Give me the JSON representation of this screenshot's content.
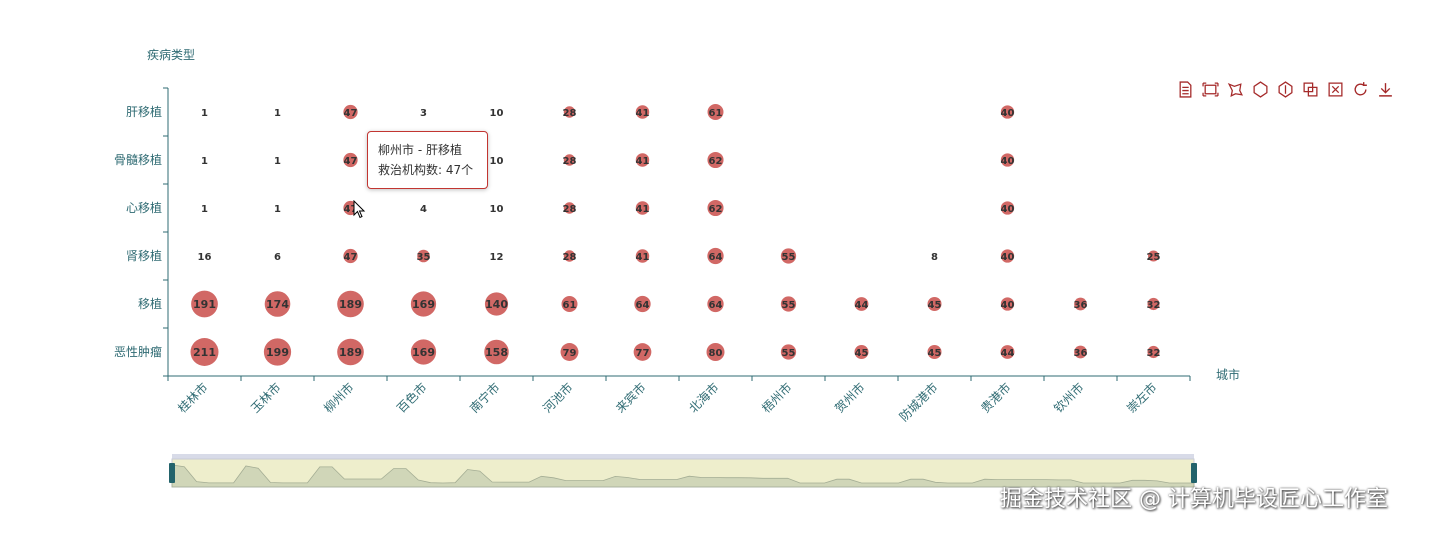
{
  "chart_data": {
    "type": "scatter",
    "subtype": "bubble",
    "xlabel": "城市",
    "ylabel": "疾病类型",
    "categories": [
      "桂林市",
      "玉林市",
      "柳州市",
      "百色市",
      "南宁市",
      "河池市",
      "来宾市",
      "北海市",
      "梧州市",
      "贺州市",
      "防城港市",
      "贵港市",
      "钦州市",
      "崇左市"
    ],
    "y_categories": [
      "恶性肿瘤",
      "移植",
      "肾移植",
      "心移植",
      "骨髓移植",
      "肝移植"
    ],
    "points": [
      {
        "x": "桂林市",
        "y": "恶性肿瘤",
        "value": 211
      },
      {
        "x": "玉林市",
        "y": "恶性肿瘤",
        "value": 199
      },
      {
        "x": "柳州市",
        "y": "恶性肿瘤",
        "value": 189
      },
      {
        "x": "百色市",
        "y": "恶性肿瘤",
        "value": 169
      },
      {
        "x": "南宁市",
        "y": "恶性肿瘤",
        "value": 158
      },
      {
        "x": "河池市",
        "y": "恶性肿瘤",
        "value": 79
      },
      {
        "x": "来宾市",
        "y": "恶性肿瘤",
        "value": 77
      },
      {
        "x": "北海市",
        "y": "恶性肿瘤",
        "value": 80
      },
      {
        "x": "梧州市",
        "y": "恶性肿瘤",
        "value": 55
      },
      {
        "x": "贺州市",
        "y": "恶性肿瘤",
        "value": 45
      },
      {
        "x": "防城港市",
        "y": "恶性肿瘤",
        "value": 45
      },
      {
        "x": "贵港市",
        "y": "恶性肿瘤",
        "value": 44
      },
      {
        "x": "钦州市",
        "y": "恶性肿瘤",
        "value": 36
      },
      {
        "x": "崇左市",
        "y": "恶性肿瘤",
        "value": 32
      },
      {
        "x": "桂林市",
        "y": "移植",
        "value": 191
      },
      {
        "x": "玉林市",
        "y": "移植",
        "value": 174
      },
      {
        "x": "柳州市",
        "y": "移植",
        "value": 189
      },
      {
        "x": "百色市",
        "y": "移植",
        "value": 169
      },
      {
        "x": "南宁市",
        "y": "移植",
        "value": 140
      },
      {
        "x": "河池市",
        "y": "移植",
        "value": 61
      },
      {
        "x": "来宾市",
        "y": "移植",
        "value": 64
      },
      {
        "x": "北海市",
        "y": "移植",
        "value": 64
      },
      {
        "x": "梧州市",
        "y": "移植",
        "value": 55
      },
      {
        "x": "贺州市",
        "y": "移植",
        "value": 44
      },
      {
        "x": "防城港市",
        "y": "移植",
        "value": 45
      },
      {
        "x": "贵港市",
        "y": "移植",
        "value": 40
      },
      {
        "x": "钦州市",
        "y": "移植",
        "value": 36
      },
      {
        "x": "崇左市",
        "y": "移植",
        "value": 32
      },
      {
        "x": "桂林市",
        "y": "肾移植",
        "value": 16
      },
      {
        "x": "玉林市",
        "y": "肾移植",
        "value": 6
      },
      {
        "x": "柳州市",
        "y": "肾移植",
        "value": 47
      },
      {
        "x": "百色市",
        "y": "肾移植",
        "value": 35
      },
      {
        "x": "南宁市",
        "y": "肾移植",
        "value": 12
      },
      {
        "x": "河池市",
        "y": "肾移植",
        "value": 28
      },
      {
        "x": "来宾市",
        "y": "肾移植",
        "value": 41
      },
      {
        "x": "北海市",
        "y": "肾移植",
        "value": 64
      },
      {
        "x": "梧州市",
        "y": "肾移植",
        "value": 55
      },
      {
        "x": "防城港市",
        "y": "肾移植",
        "value": 8
      },
      {
        "x": "贵港市",
        "y": "肾移植",
        "value": 40
      },
      {
        "x": "崇左市",
        "y": "肾移植",
        "value": 25
      },
      {
        "x": "桂林市",
        "y": "心移植",
        "value": 1
      },
      {
        "x": "玉林市",
        "y": "心移植",
        "value": 1
      },
      {
        "x": "柳州市",
        "y": "心移植",
        "value": 47
      },
      {
        "x": "百色市",
        "y": "心移植",
        "value": 4
      },
      {
        "x": "南宁市",
        "y": "心移植",
        "value": 10
      },
      {
        "x": "河池市",
        "y": "心移植",
        "value": 28
      },
      {
        "x": "来宾市",
        "y": "心移植",
        "value": 41
      },
      {
        "x": "北海市",
        "y": "心移植",
        "value": 62
      },
      {
        "x": "贵港市",
        "y": "心移植",
        "value": 40
      },
      {
        "x": "桂林市",
        "y": "骨髓移植",
        "value": 1
      },
      {
        "x": "玉林市",
        "y": "骨髓移植",
        "value": 1
      },
      {
        "x": "柳州市",
        "y": "骨髓移植",
        "value": 47
      },
      {
        "x": "南宁市",
        "y": "骨髓移植",
        "value": 10
      },
      {
        "x": "河池市",
        "y": "骨髓移植",
        "value": 28
      },
      {
        "x": "来宾市",
        "y": "骨髓移植",
        "value": 41
      },
      {
        "x": "北海市",
        "y": "骨髓移植",
        "value": 62
      },
      {
        "x": "贵港市",
        "y": "骨髓移植",
        "value": 40
      },
      {
        "x": "桂林市",
        "y": "肝移植",
        "value": 1
      },
      {
        "x": "玉林市",
        "y": "肝移植",
        "value": 1
      },
      {
        "x": "柳州市",
        "y": "肝移植",
        "value": 47
      },
      {
        "x": "百色市",
        "y": "肝移植",
        "value": 3
      },
      {
        "x": "南宁市",
        "y": "肝移植",
        "value": 10
      },
      {
        "x": "河池市",
        "y": "肝移植",
        "value": 28
      },
      {
        "x": "来宾市",
        "y": "肝移植",
        "value": 41
      },
      {
        "x": "北海市",
        "y": "肝移植",
        "value": 61
      },
      {
        "x": "贵港市",
        "y": "肝移植",
        "value": 40
      }
    ],
    "grid": false,
    "colors": {
      "bubble": "#c23531",
      "axis": "#2f6b73",
      "label": "#333333",
      "toolbox": "#a52a2a",
      "zoom_bg": "#eeeecc",
      "zoom_handle": "#23636b"
    }
  },
  "tooltip": {
    "title": "柳州市 - 肝移植",
    "body": "救治机构数: 47个"
  },
  "toolbox": {
    "icons": [
      "data-view-icon",
      "zoom-select-icon",
      "lasso-select-icon",
      "rect-select-icon",
      "polygon-select-icon",
      "keep-selected-icon",
      "clear-select-icon",
      "restore-icon",
      "download-icon"
    ]
  },
  "datazoom": {
    "start_fraction": 0,
    "end_fraction": 1
  },
  "watermark": "掘金技术社区 @ 计算机毕设匠心工作室"
}
